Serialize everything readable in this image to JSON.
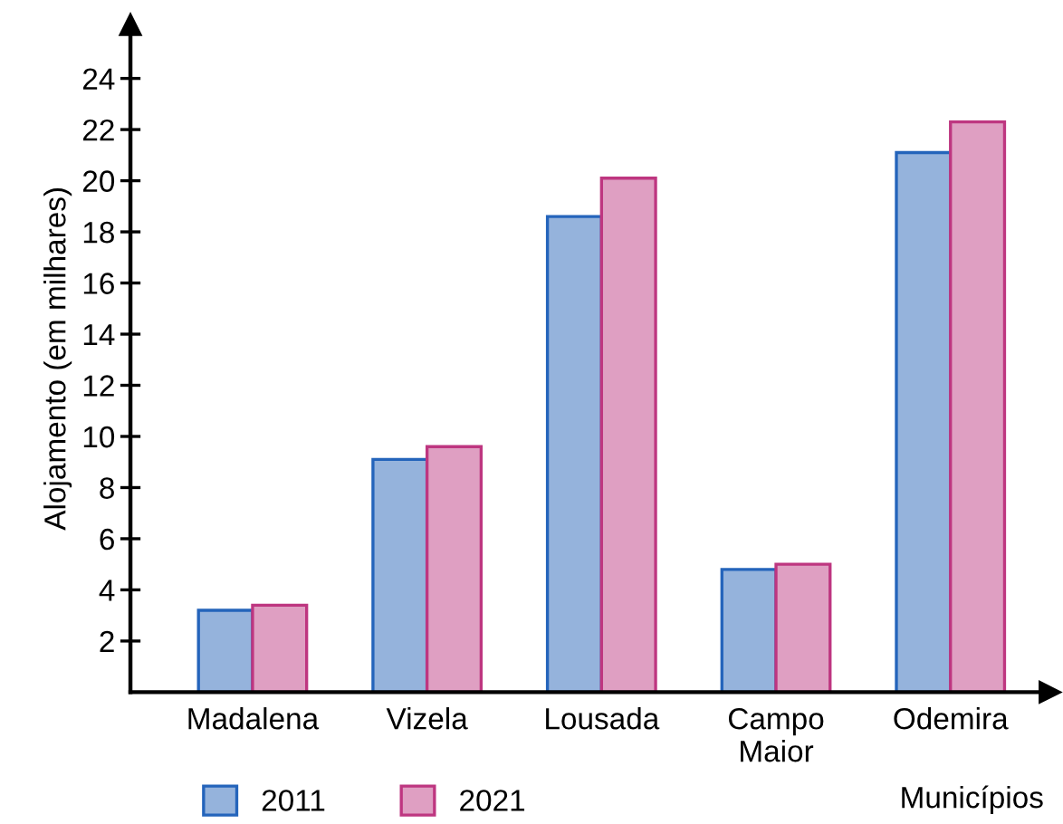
{
  "chart_data": {
    "type": "bar",
    "xlabel": "Municípios",
    "ylabel": "Alojamento (em milhares)",
    "categories": [
      "Madalena",
      "Vizela",
      "Lousada",
      "Campo\nMaior",
      "Odemira"
    ],
    "series": [
      {
        "name": "2011",
        "color": "#95b3dc",
        "values": [
          3.2,
          9.1,
          18.6,
          4.8,
          21.1
        ]
      },
      {
        "name": "2021",
        "color": "#df9fc2",
        "values": [
          3.4,
          9.6,
          20.1,
          5.0,
          22.3
        ]
      }
    ],
    "ylim": [
      0,
      26.1
    ],
    "yticks": [
      2,
      4,
      6,
      8,
      10,
      12,
      14,
      16,
      18,
      20,
      22,
      24
    ],
    "grid": false,
    "legend": "bottom left"
  }
}
